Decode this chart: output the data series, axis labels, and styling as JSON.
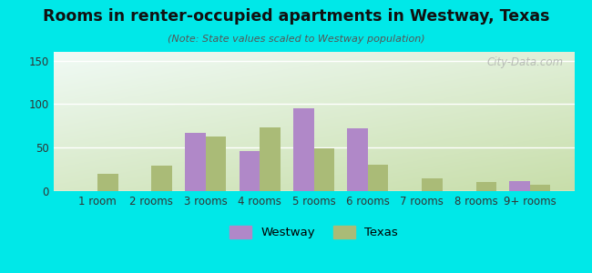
{
  "title": "Rooms in renter-occupied apartments in Westway, Texas",
  "subtitle": "(Note: State values scaled to Westway population)",
  "categories": [
    "1 room",
    "2 rooms",
    "3 rooms",
    "4 rooms",
    "5 rooms",
    "6 rooms",
    "7 rooms",
    "8 rooms",
    "9+ rooms"
  ],
  "westway_values": [
    0,
    0,
    67,
    46,
    95,
    72,
    0,
    0,
    11
  ],
  "texas_values": [
    20,
    29,
    63,
    73,
    49,
    30,
    15,
    10,
    7
  ],
  "westway_color": "#b088c8",
  "texas_color": "#aabb77",
  "ylim": [
    0,
    160
  ],
  "yticks": [
    0,
    50,
    100,
    150
  ],
  "background_outer": "#00e8e8",
  "watermark": "City-Data.com",
  "bar_width": 0.38,
  "legend_westway": "Westway",
  "legend_texas": "Texas"
}
